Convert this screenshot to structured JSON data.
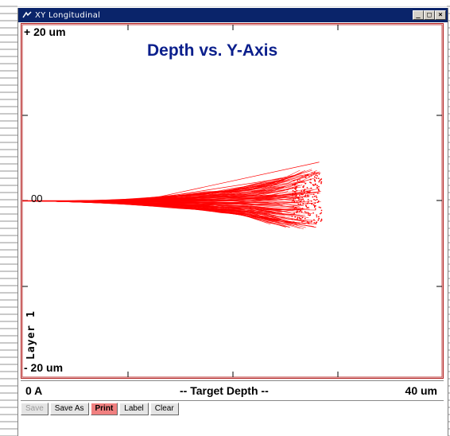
{
  "window": {
    "title": "XY Longitudinal",
    "controls": [
      "_",
      "□",
      "×"
    ]
  },
  "plot": {
    "title": "Depth vs. Y-Axis",
    "y_top_label": "+ 20 um",
    "y_bottom_label": "- 20 um",
    "zero_label": "00",
    "layer_label": "Layer 1",
    "x_left_label": "0 A",
    "x_center_label": "-- Target Depth --",
    "x_right_label": "40 um",
    "trace_color": "#ff0000"
  },
  "chart_data": {
    "type": "scatter",
    "title": "Depth vs. Y-Axis",
    "xlabel": "-- Target Depth --",
    "ylabel": "",
    "xlim": [
      0,
      40
    ],
    "ylim": [
      -20,
      20
    ],
    "x_unit": "um",
    "y_unit": "um",
    "series": [
      {
        "name": "",
        "description_of_extent": "dense trajectories from origin spreading to max depth",
        "envelope": [
          {
            "x": 0,
            "y_min": 0,
            "y_max": 0
          },
          {
            "x": 10,
            "y_min": -0.8,
            "y_max": 0.6
          },
          {
            "x": 20,
            "y_min": -1.8,
            "y_max": 1.7
          },
          {
            "x": 25,
            "y_min": -2.8,
            "y_max": 2.8
          },
          {
            "x": 28.5,
            "y_min": -3.5,
            "y_max": 4.4
          }
        ]
      }
    ]
  },
  "toolbar": {
    "save": "Save",
    "save_as": "Save As",
    "print": "Print",
    "label": "Label",
    "clear": "Clear"
  }
}
